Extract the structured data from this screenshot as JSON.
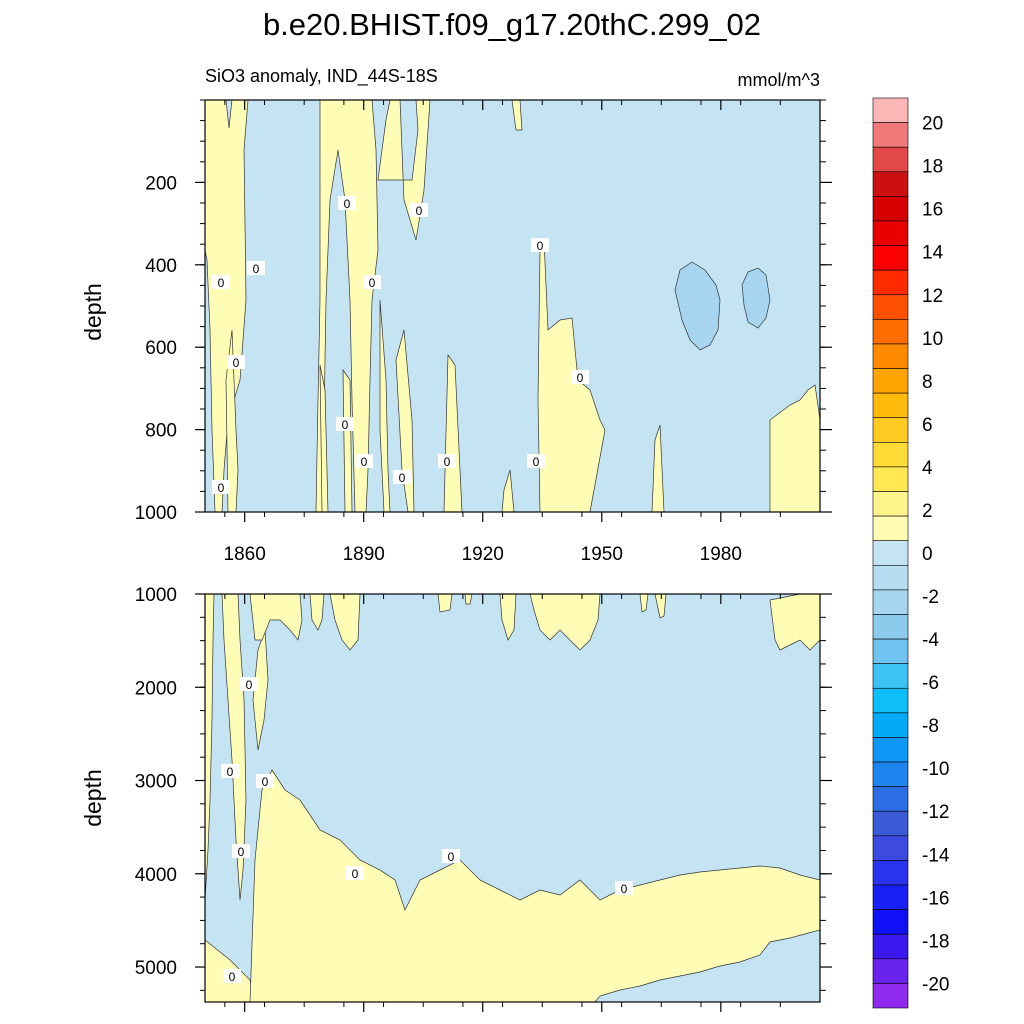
{
  "title": "b.e20.BHIST.f09_g17.20thC.299_02",
  "colors": {
    "positive_fill": "#fffcb6",
    "negative_fill": "#c4e4f4",
    "pocket_fill": "#a7d5ef",
    "contour_line": "#333333"
  },
  "chart_data": [
    {
      "type": "heatmap",
      "panel": "upper",
      "subtitle_left": "SiO3 anomaly, IND_44S-18S",
      "subtitle_right": "mmol/m^3",
      "xlabel": "",
      "ylabel": "depth",
      "xlim": [
        1850,
        2005
      ],
      "ylim": [
        1000,
        0
      ],
      "xticks": [
        "1860",
        "1890",
        "1920",
        "1950",
        "1980"
      ],
      "yticks": [
        "200",
        "400",
        "600",
        "800",
        "1000"
      ],
      "contour_labels": [
        "0",
        "0",
        "0",
        "0",
        "0",
        "0",
        "0",
        "0",
        "0",
        "0",
        "0",
        "0",
        "0",
        "0"
      ]
    },
    {
      "type": "heatmap",
      "panel": "lower",
      "subtitle_left": "",
      "subtitle_right": "",
      "xlabel": "",
      "ylabel": "depth",
      "xlim": [
        1850,
        2005
      ],
      "ylim": [
        5375,
        1000
      ],
      "xticks": [],
      "yticks": [
        "1000",
        "2000",
        "3000",
        "4000",
        "5000"
      ],
      "contour_labels": [
        "0",
        "0",
        "0",
        "0",
        "0",
        "0",
        "0"
      ]
    }
  ],
  "colorbar": {
    "labels": [
      "20",
      "18",
      "16",
      "14",
      "12",
      "10",
      "8",
      "6",
      "4",
      "2",
      "0",
      "-2",
      "-4",
      "-6",
      "-8",
      "-10",
      "-12",
      "-14",
      "-16",
      "-18",
      "-20"
    ],
    "colors": [
      "#fdb6b6",
      "#f07878",
      "#e24848",
      "#cc1010",
      "#d70000",
      "#e80000",
      "#fa0000",
      "#ff2b00",
      "#ff4f00",
      "#ff6d00",
      "#ff8a00",
      "#ffa400",
      "#ffba0c",
      "#ffcb22",
      "#ffdb37",
      "#ffe851",
      "#fff48c",
      "#fffcb6",
      "#c4e4f4",
      "#b6def2",
      "#a6d5ef",
      "#8dcbec",
      "#6fc3ee",
      "#3cc2f5",
      "#0dbef8",
      "#05aaf7",
      "#0e97f4",
      "#1e84ee",
      "#2c6fe4",
      "#3a5ad8",
      "#3c4ae0",
      "#2a34ee",
      "#1a20f4",
      "#1010f6",
      "#3a18f0",
      "#6a22ee",
      "#8d2aee"
    ]
  }
}
